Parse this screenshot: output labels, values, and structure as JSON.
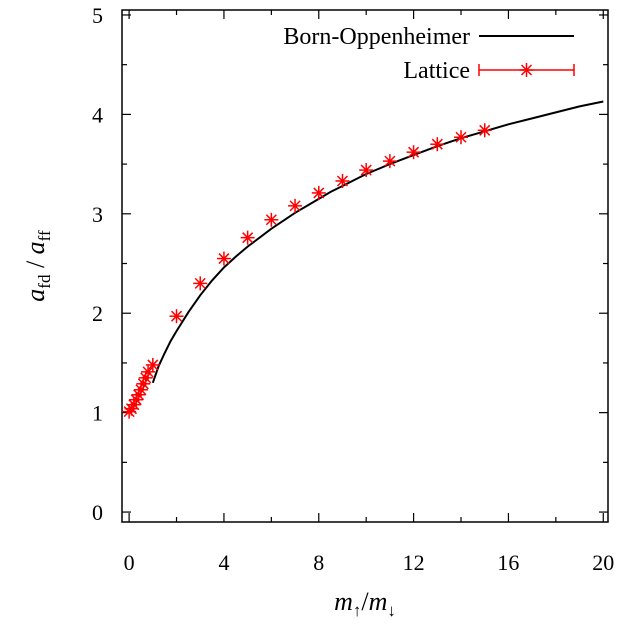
{
  "chart_data": {
    "type": "line",
    "xlabel": {
      "main": "m",
      "sub1": "↑",
      "sep": "/",
      "main2": "m",
      "sub2": "↓"
    },
    "ylabel": {
      "main": "a",
      "sub1": "fd",
      "sep": " / ",
      "main2": "a",
      "sub2": "ff"
    },
    "xlim": [
      -0.3,
      20.2
    ],
    "ylim": [
      -0.1,
      5.05
    ],
    "xticks": [
      0,
      4,
      8,
      12,
      16,
      20
    ],
    "yticks": [
      0,
      1,
      2,
      3,
      4,
      5
    ],
    "grid": false,
    "legend_position": "top-right",
    "series": [
      {
        "name": "Born-Oppenheimer",
        "style": "line",
        "color": "#000000",
        "x": [
          1,
          1.25,
          1.5,
          1.75,
          2,
          2.5,
          3,
          3.5,
          4,
          4.5,
          5,
          5.5,
          6,
          6.5,
          7,
          7.5,
          8,
          8.5,
          9,
          9.5,
          10,
          11,
          12,
          13,
          14,
          15,
          16,
          17,
          18,
          19,
          20
        ],
        "y": [
          1.3,
          1.47,
          1.6,
          1.72,
          1.82,
          2.01,
          2.18,
          2.33,
          2.46,
          2.57,
          2.67,
          2.76,
          2.85,
          2.93,
          3.01,
          3.08,
          3.15,
          3.22,
          3.28,
          3.34,
          3.4,
          3.5,
          3.59,
          3.68,
          3.76,
          3.83,
          3.9,
          3.96,
          4.02,
          4.08,
          4.13
        ]
      },
      {
        "name": "Lattice",
        "style": "points",
        "color": "#ff0000",
        "x": [
          0,
          0.1,
          0.2,
          0.3,
          0.4,
          0.5,
          0.6,
          0.7,
          0.8,
          1,
          2,
          3,
          4,
          5,
          6,
          7,
          8,
          9,
          10,
          11,
          12,
          13,
          14,
          15
        ],
        "y": [
          1.01,
          1.04,
          1.08,
          1.13,
          1.18,
          1.23,
          1.29,
          1.35,
          1.41,
          1.48,
          1.97,
          2.3,
          2.55,
          2.76,
          2.94,
          3.08,
          3.21,
          3.33,
          3.44,
          3.53,
          3.62,
          3.7,
          3.77,
          3.84
        ]
      }
    ]
  }
}
